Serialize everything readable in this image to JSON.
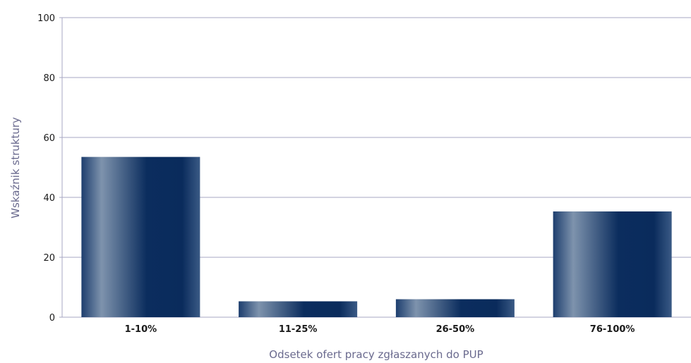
{
  "chart_data": {
    "type": "bar",
    "title": "",
    "xlabel": "Odsetek ofert pracy zgłaszanych do PUP",
    "ylabel": "Wskaźnik struktury",
    "categories": [
      "1-10%",
      "11-25%",
      "26-50%",
      "76-100%"
    ],
    "values": [
      53.5,
      5.3,
      6.0,
      35.3
    ],
    "ylim": [
      0,
      100
    ],
    "yticks": [
      0,
      20,
      40,
      60,
      80,
      100
    ],
    "grid": true,
    "legend": "none"
  },
  "colors": {
    "bar_dark": "#0b2d5e",
    "bar_light": "#7e93ad",
    "grid": "#a7a7c3",
    "axis_title": "#6a6a8e"
  }
}
